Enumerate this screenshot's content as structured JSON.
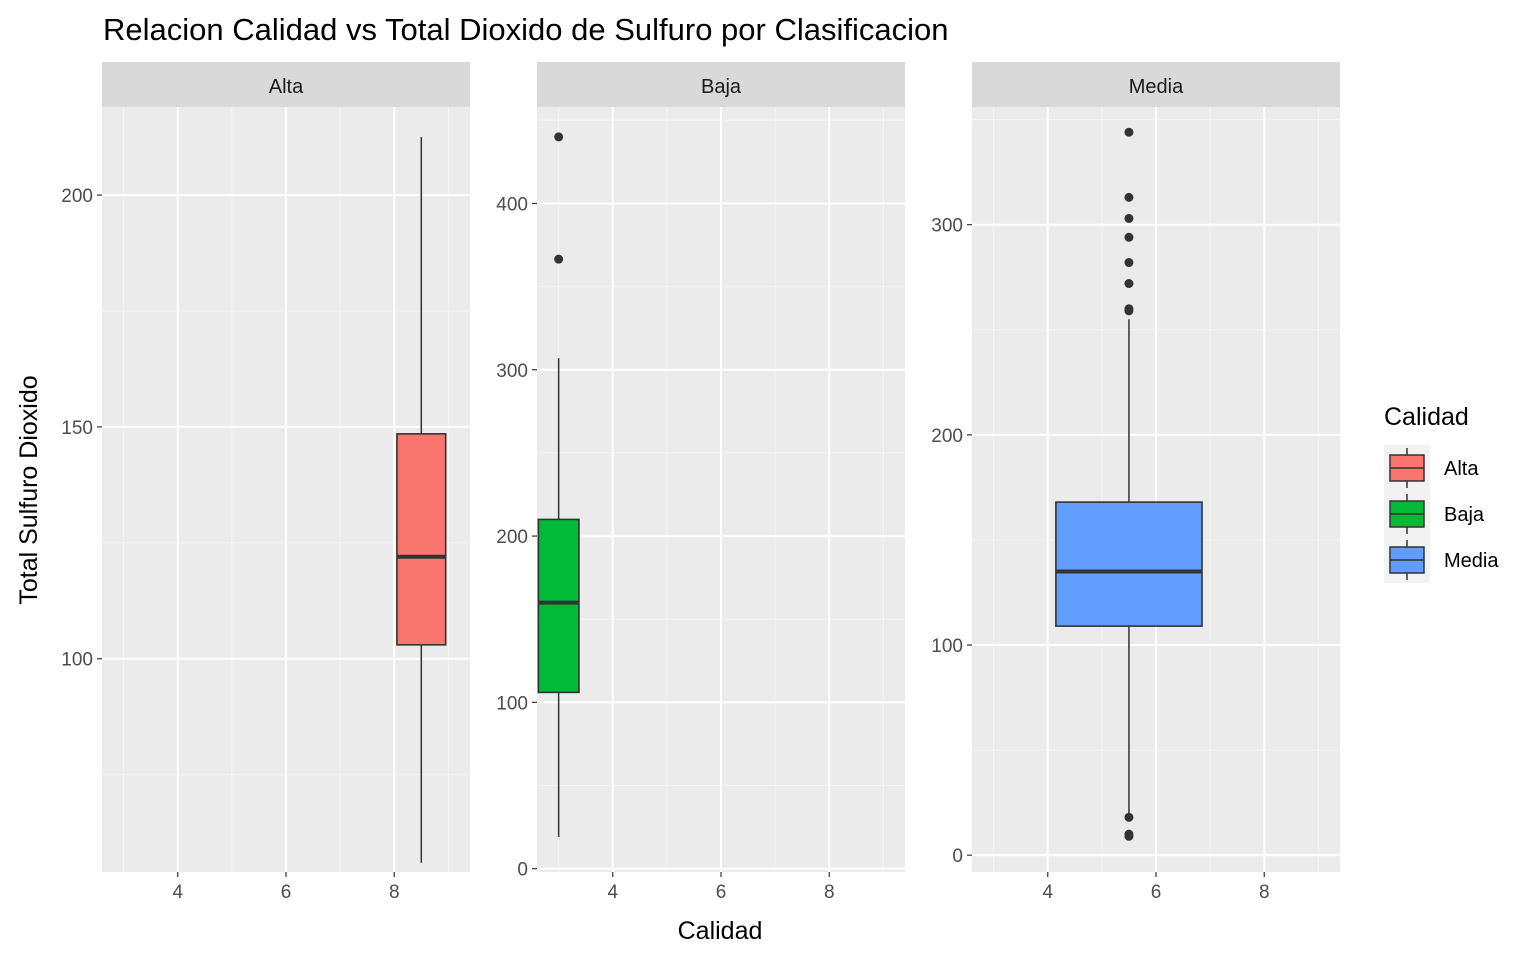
{
  "chart_data": {
    "type": "boxplot",
    "title": "Relacion Calidad vs Total Dioxido de Sulfuro por Clasificacion",
    "xlabel": "Calidad",
    "ylabel": "Total Sulfuro Dioxido",
    "x_ticks": [
      "4",
      "6",
      "8"
    ],
    "xlim": [
      2.6,
      9.4
    ],
    "grid": true,
    "background": "#ebebeb",
    "strip_color": "#d9d9d9",
    "legend": {
      "title": "Calidad",
      "position": "right",
      "items": [
        {
          "label": "Alta",
          "color": "#F8766D"
        },
        {
          "label": "Baja",
          "color": "#00BA38"
        },
        {
          "label": "Media",
          "color": "#619CFF"
        }
      ]
    },
    "panels": [
      {
        "strip": "Alta",
        "color": "#F8766D",
        "ylim": [
          54,
          219
        ],
        "y_ticks": [
          100,
          150,
          200
        ],
        "box": {
          "x": 8.5,
          "x_from": 8.05,
          "x_to": 8.95,
          "whisker_low": 56,
          "q1": 103,
          "median": 122,
          "q3": 148.5,
          "whisker_high": 212.5
        },
        "outliers": []
      },
      {
        "strip": "Baja",
        "color": "#00BA38",
        "ylim": [
          -2,
          458
        ],
        "y_ticks": [
          0,
          100,
          200,
          300,
          400
        ],
        "box": {
          "x": 3,
          "x_from": 2.625,
          "x_to": 3.375,
          "whisker_low": 19,
          "q1": 106,
          "median": 160,
          "q3": 210,
          "whisker_high": 307
        },
        "outliers": [
          366.5,
          440
        ]
      },
      {
        "strip": "Media",
        "color": "#619CFF",
        "ylim": [
          -8,
          356
        ],
        "y_ticks": [
          0,
          100,
          200,
          300
        ],
        "box": {
          "x": 5.5,
          "x_from": 4.15,
          "x_to": 6.85,
          "whisker_low": 19,
          "q1": 109,
          "median": 135,
          "q3": 168,
          "whisker_high": 255
        },
        "outliers": [
          9,
          10,
          18,
          259,
          260,
          272,
          282,
          294,
          303,
          313,
          344
        ]
      }
    ]
  }
}
